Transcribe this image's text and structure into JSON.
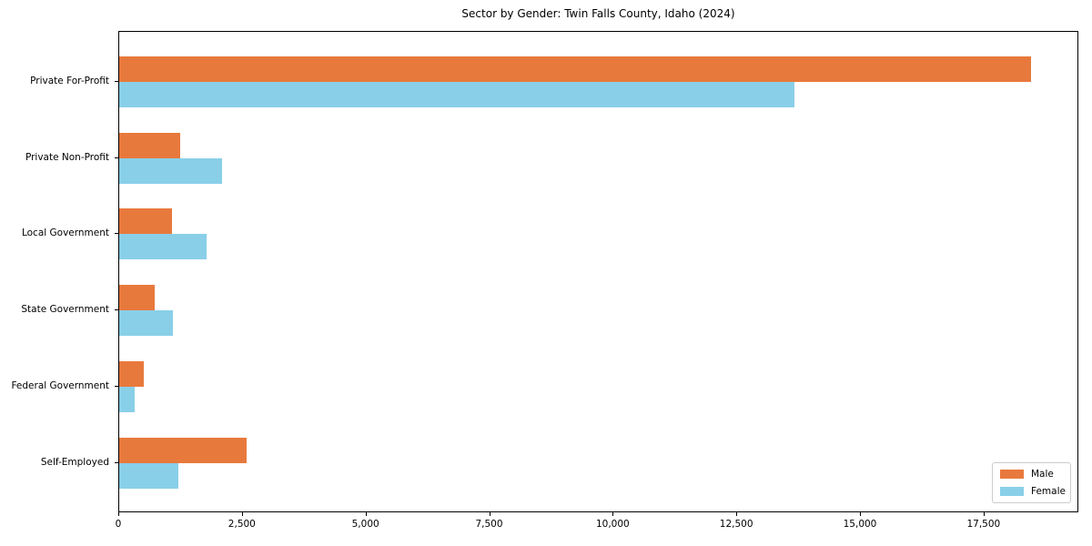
{
  "title": "Sector by Gender: Twin Falls County, Idaho (2024)",
  "colors": {
    "male": "#e8793c",
    "female": "#89cfe8",
    "axis": "#000000",
    "legend_border": "#cccccc"
  },
  "legend": {
    "position": "lower right",
    "items": [
      {
        "label": "Male",
        "color_key": "male"
      },
      {
        "label": "Female",
        "color_key": "female"
      }
    ]
  },
  "chart_data": {
    "type": "bar",
    "orientation": "horizontal",
    "title": "Sector by Gender: Twin Falls County, Idaho (2024)",
    "categories": [
      "Private For-Profit",
      "Private Non-Profit",
      "Local Government",
      "State Government",
      "Federal Government",
      "Self-Employed"
    ],
    "series": [
      {
        "name": "Male",
        "color_key": "male",
        "values": [
          18450,
          1230,
          1070,
          720,
          490,
          2580
        ]
      },
      {
        "name": "Female",
        "color_key": "female",
        "values": [
          13650,
          2080,
          1770,
          1080,
          310,
          1190
        ]
      }
    ],
    "xlabel": "",
    "ylabel": "",
    "xlim": [
      0,
      19380
    ],
    "x_ticks": [
      0,
      2500,
      5000,
      7500,
      10000,
      12500,
      15000,
      17500
    ],
    "x_tick_labels": [
      "0",
      "2,500",
      "5,000",
      "7,500",
      "10,000",
      "12,500",
      "15,000",
      "17,500"
    ],
    "grid": false,
    "legend_position": "lower right"
  }
}
